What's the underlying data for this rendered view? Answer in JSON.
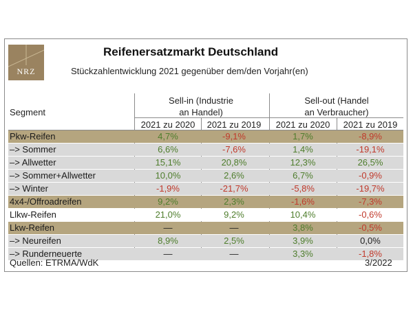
{
  "logo": {
    "text": "NRZ",
    "name": "nrz-logo"
  },
  "title": "Reifenersatzmarkt Deutschland",
  "subtitle": "Stückzahlentwicklung 2021 gegenüber dem/den Vorjahr(en)",
  "table": {
    "segment_header": "Segment",
    "group1_line1": "Sell-in (Industrie",
    "group1_line2": "an Handel)",
    "group2_line1": "Sell-out (Handel",
    "group2_line2": "an Verbraucher)",
    "columns": [
      "2021 zu 2020",
      "2021 zu 2019",
      "2021 zu 2020",
      "2021 zu 2019"
    ],
    "rows": [
      {
        "label": "Pkw-Reifen",
        "style": "gold",
        "values": [
          "4,7%",
          "-9,1%",
          "1,7%",
          "-8,9%"
        ],
        "tones": [
          "g",
          "r",
          "g",
          "r"
        ]
      },
      {
        "label": " –> Sommer",
        "style": "gray",
        "values": [
          "6,6%",
          "-7,6%",
          "1,4%",
          "-19,1%"
        ],
        "tones": [
          "g",
          "r",
          "g",
          "r"
        ]
      },
      {
        "label": " –> Allwetter",
        "style": "gray",
        "values": [
          "15,1%",
          "20,8%",
          "12,3%",
          "26,5%"
        ],
        "tones": [
          "g",
          "g",
          "g",
          "g"
        ]
      },
      {
        "label": " –> Sommer+Allwetter",
        "style": "gray",
        "values": [
          "10,0%",
          "2,6%",
          "6,7%",
          "-0,9%"
        ],
        "tones": [
          "g",
          "g",
          "g",
          "r"
        ]
      },
      {
        "label": " –> Winter",
        "style": "gray",
        "values": [
          "-1,9%",
          "-21,7%",
          "-5,8%",
          "-19,7%"
        ],
        "tones": [
          "r",
          "r",
          "r",
          "r"
        ]
      },
      {
        "label": "4x4-/Offroadreifen",
        "style": "gold",
        "values": [
          "9,2%",
          "2,3%",
          "-1,6%",
          "-7,3%"
        ],
        "tones": [
          "g",
          "g",
          "r",
          "r"
        ]
      },
      {
        "label": "Llkw-Reifen",
        "style": "white",
        "values": [
          "21,0%",
          "9,2%",
          "10,4%",
          "-0,6%"
        ],
        "tones": [
          "g",
          "g",
          "g",
          "r"
        ]
      },
      {
        "label": "Lkw-Reifen",
        "style": "gold",
        "values": [
          "—",
          "—",
          "3,8%",
          "-0,5%"
        ],
        "tones": [
          "n",
          "n",
          "g",
          "r"
        ]
      },
      {
        "label": " –> Neureifen",
        "style": "gray",
        "values": [
          "8,9%",
          "2,5%",
          "3,9%",
          "0,0%"
        ],
        "tones": [
          "g",
          "g",
          "g",
          "n"
        ]
      },
      {
        "label": " –> Runderneuerte",
        "style": "gray",
        "values": [
          "—",
          "—",
          "3,3%",
          "-1,8%"
        ],
        "tones": [
          "n",
          "n",
          "g",
          "r"
        ]
      }
    ]
  },
  "footer": {
    "source": "Quellen: ETRMA/WdK",
    "date": "3/2022"
  },
  "colors": {
    "gold": "#b5a57f",
    "gray": "#d9d9d9",
    "positive": "#4e7d2c",
    "negative": "#c0392b",
    "logo": "#9a8360"
  }
}
